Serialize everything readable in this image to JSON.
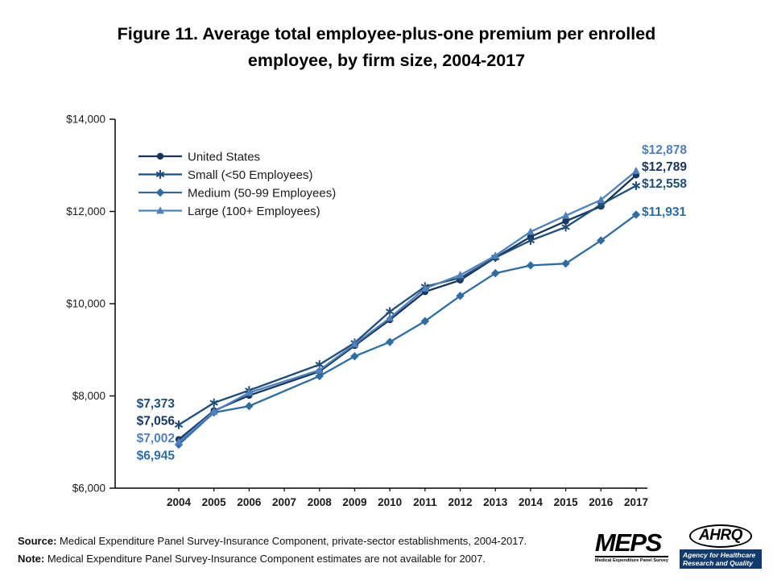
{
  "title": {
    "line1": "Figure 11. Average total employee-plus-one premium per enrolled",
    "line2": "employee, by firm size, 2004-2017"
  },
  "chart_data": {
    "type": "line",
    "title": "Figure 11. Average total employee-plus-one premium per enrolled employee, by firm size, 2004-2017",
    "ylim": [
      6000,
      14000
    ],
    "y_ticks": [
      6000,
      8000,
      10000,
      12000,
      14000
    ],
    "y_tick_labels": [
      "$6,000",
      "$8,000",
      "$10,000",
      "$12,000",
      "$14,000"
    ],
    "x_ticks": [
      2004,
      2005,
      2006,
      2007,
      2008,
      2009,
      2010,
      2011,
      2012,
      2013,
      2014,
      2015,
      2016,
      2017
    ],
    "x_tick_labels": [
      "2004",
      "2005",
      "2006",
      "2007",
      "2008",
      "2009",
      "2010",
      "2011",
      "2012",
      "2013",
      "2014",
      "2015",
      "2016",
      "2017"
    ],
    "x": [
      2004,
      2005,
      2006,
      2008,
      2009,
      2010,
      2011,
      2012,
      2013,
      2014,
      2015,
      2016,
      2017
    ],
    "grid": false,
    "legend_position": "top-left-inside",
    "missing_data_years": [
      2007
    ],
    "series": [
      {
        "name": "United States",
        "marker": "circle",
        "color": "#17365d",
        "values": [
          7056,
          7680,
          8010,
          8530,
          9090,
          9650,
          10260,
          10510,
          11000,
          11450,
          11790,
          12110,
          12789
        ]
      },
      {
        "name": "Small (<50 Employees)",
        "marker": "star",
        "color": "#1f4e79",
        "values": [
          7373,
          7850,
          8120,
          8680,
          9150,
          9830,
          10370,
          10560,
          11000,
          11370,
          11660,
          12150,
          12558
        ]
      },
      {
        "name": "Medium (50-99 Employees)",
        "marker": "diamond",
        "color": "#2e6ca4",
        "values": [
          6945,
          7640,
          7780,
          8430,
          8860,
          9170,
          9620,
          10170,
          10660,
          10830,
          10870,
          11370,
          11931
        ]
      },
      {
        "name": "Large (100+ Employees)",
        "marker": "triangle",
        "color": "#4f81bd",
        "values": [
          7002,
          7660,
          8070,
          8560,
          9120,
          9690,
          10330,
          10620,
          11040,
          11560,
          11910,
          12250,
          12878
        ]
      }
    ],
    "annotations": {
      "start": [
        {
          "text": "$7,373",
          "series": "Small (<50 Employees)"
        },
        {
          "text": "$7,056",
          "series": "United States"
        },
        {
          "text": "$7,002",
          "series": "Large (100+ Employees)"
        },
        {
          "text": "$6,945",
          "series": "Medium (50-99 Employees)"
        }
      ],
      "end": [
        {
          "text": "$12,878",
          "series": "Large (100+ Employees)"
        },
        {
          "text": "$12,789",
          "series": "United States"
        },
        {
          "text": "$12,558",
          "series": "Small (<50 Employees)"
        },
        {
          "text": "$11,931",
          "series": "Medium (50-99 Employees)"
        }
      ]
    }
  },
  "footer": {
    "source_label": "Source:",
    "source_text": "Medical Expenditure Panel Survey-Insurance Component, private-sector establishments, 2004-2017.",
    "note_label": "Note:",
    "note_text": "Medical Expenditure Panel Survey-Insurance Component estimates are not available for 2007."
  },
  "logos": {
    "meps_title": "MEPS",
    "meps_subtitle": "Medical Expenditure Panel Survey",
    "ahrq_title": "AHRQ",
    "ahrq_subtitle": "Agency for Healthcare Research and Quality"
  }
}
